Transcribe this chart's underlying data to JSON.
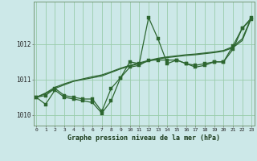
{
  "xlabel": "Graphe pression niveau de la mer (hPa)",
  "bg_color": "#cce8e8",
  "grid_color": "#99ccaa",
  "line_color": "#2d6630",
  "x": [
    0,
    1,
    2,
    3,
    4,
    5,
    6,
    7,
    8,
    9,
    10,
    11,
    12,
    13,
    14,
    15,
    16,
    17,
    18,
    19,
    20,
    21,
    22,
    23
  ],
  "line_zigzag": [
    1010.5,
    1010.3,
    1010.7,
    1010.5,
    1010.45,
    1010.4,
    1010.35,
    1010.05,
    1010.4,
    1011.05,
    1011.5,
    1011.45,
    1012.75,
    1012.15,
    1011.45,
    1011.55,
    1011.45,
    1011.35,
    1011.4,
    1011.5,
    1011.5,
    1011.95,
    1012.45,
    1012.75
  ],
  "line_smooth1": [
    1010.5,
    1010.55,
    1010.75,
    1010.55,
    1010.5,
    1010.45,
    1010.45,
    1010.1,
    1010.75,
    1011.05,
    1011.35,
    1011.4,
    1011.55,
    1011.55,
    1011.55,
    1011.55,
    1011.45,
    1011.4,
    1011.45,
    1011.5,
    1011.5,
    1011.85,
    1012.45,
    1012.7
  ],
  "line_trend1": [
    1010.5,
    1010.6,
    1010.75,
    1010.85,
    1010.95,
    1011.0,
    1011.05,
    1011.1,
    1011.2,
    1011.3,
    1011.38,
    1011.45,
    1011.52,
    1011.58,
    1011.62,
    1011.65,
    1011.68,
    1011.7,
    1011.73,
    1011.76,
    1011.8,
    1011.9,
    1012.1,
    1012.75
  ],
  "line_trend2": [
    1010.5,
    1010.62,
    1010.78,
    1010.88,
    1010.96,
    1011.02,
    1011.08,
    1011.13,
    1011.22,
    1011.32,
    1011.4,
    1011.47,
    1011.54,
    1011.6,
    1011.64,
    1011.67,
    1011.7,
    1011.72,
    1011.75,
    1011.78,
    1011.82,
    1011.93,
    1012.15,
    1012.77
  ],
  "ylim": [
    1009.7,
    1013.2
  ],
  "yticks": [
    1010,
    1011,
    1012
  ],
  "xticks": [
    0,
    1,
    2,
    3,
    4,
    5,
    6,
    7,
    8,
    9,
    10,
    11,
    12,
    13,
    14,
    15,
    16,
    17,
    18,
    19,
    20,
    21,
    22,
    23
  ]
}
